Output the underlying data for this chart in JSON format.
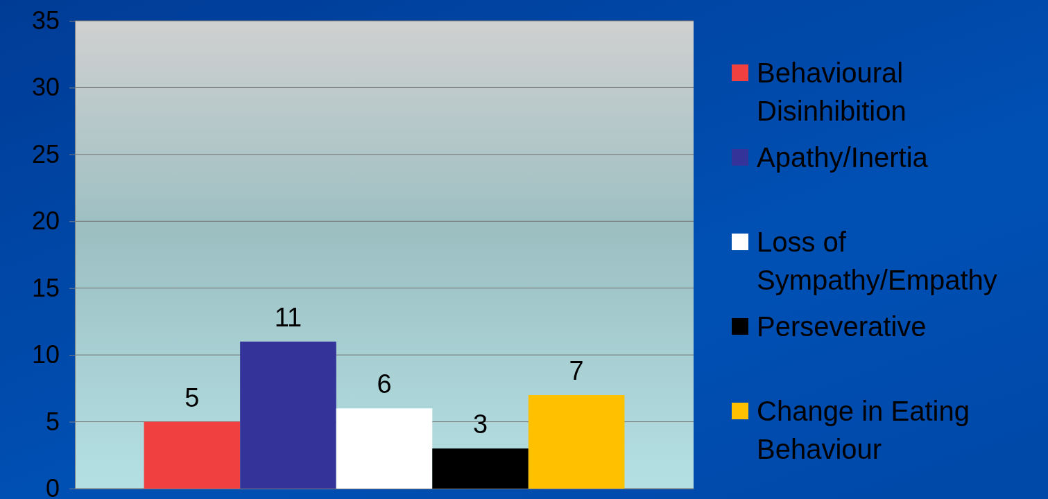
{
  "chart_data": {
    "type": "bar",
    "categories": [
      null
    ],
    "series": [
      {
        "name": "Behavioural Disinhibition",
        "color": "#f04040",
        "values": [
          5
        ]
      },
      {
        "name": "Apathy/Inertia",
        "color": "#333399",
        "values": [
          11
        ]
      },
      {
        "name": "Loss of Sympathy/Empathy",
        "color": "#ffffff",
        "values": [
          6
        ]
      },
      {
        "name": "Perseverative",
        "color": "#000000",
        "values": [
          3
        ]
      },
      {
        "name": "Change in Eating Behaviour",
        "color": "#ffc000",
        "values": [
          7
        ]
      }
    ],
    "ylim": [
      0,
      35
    ],
    "yticks": [
      0,
      5,
      10,
      15,
      20,
      25,
      30,
      35
    ],
    "grid": "y",
    "legend": "right",
    "data_labels": true
  }
}
